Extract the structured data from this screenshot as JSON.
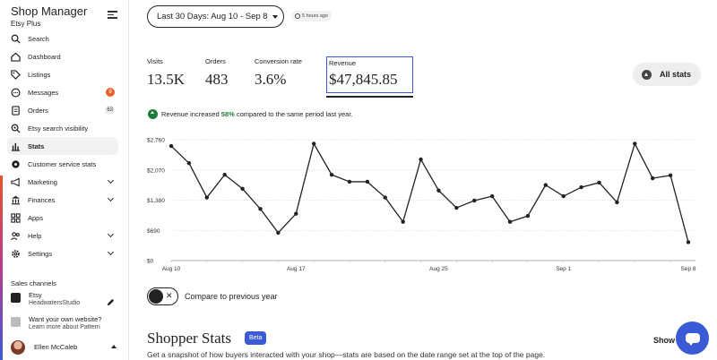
{
  "sidebar": {
    "title": "Shop Manager",
    "subtitle": "Etsy Plus",
    "items": [
      {
        "label": "Search",
        "icon": "search-icon"
      },
      {
        "label": "Dashboard",
        "icon": "home-icon"
      },
      {
        "label": "Listings",
        "icon": "tag-icon"
      },
      {
        "label": "Messages",
        "icon": "chat-icon",
        "badge": "9"
      },
      {
        "label": "Orders",
        "icon": "clipboard-icon",
        "badge": "63"
      },
      {
        "label": "Etsy search visibility",
        "icon": "magnify-icon"
      },
      {
        "label": "Stats",
        "icon": "bar-chart-icon",
        "active": true
      },
      {
        "label": "Customer service stats",
        "icon": "gear-icon"
      },
      {
        "label": "Marketing",
        "icon": "megaphone-icon",
        "chevron": true
      },
      {
        "label": "Finances",
        "icon": "bank-icon",
        "chevron": true
      },
      {
        "label": "Apps",
        "icon": "grid-icon"
      },
      {
        "label": "Help",
        "icon": "people-icon",
        "chevron": true
      },
      {
        "label": "Settings",
        "icon": "gear-icon",
        "chevron": true
      }
    ],
    "sales_channels_label": "Sales channels",
    "etsy_channel": {
      "name": "Etsy",
      "store": "HeadwatersStudio"
    },
    "website_prompt": {
      "question": "Want your own website?",
      "link": "Learn more about Pattern"
    },
    "user": {
      "name": "Ellen McCaleb"
    }
  },
  "header": {
    "date_range": "Last 30 Days: Aug 10 - Sep 8",
    "updated": "5 hours ago"
  },
  "metrics": [
    {
      "label": "Visits",
      "value": "13.5K"
    },
    {
      "label": "Orders",
      "value": "483"
    },
    {
      "label": "Conversion rate",
      "value": "3.6%"
    },
    {
      "label": "Revenue",
      "value": "$47,845.85"
    }
  ],
  "all_stats_label": "All stats",
  "insight": {
    "prefix": "Revenue increased ",
    "highlight": "58%",
    "suffix": " compared to the same period last year."
  },
  "chart_data": {
    "type": "line",
    "y_ticks": [
      "$2,760",
      "$2,070",
      "$1,380",
      "$690",
      "$0"
    ],
    "x_ticks": [
      "Aug 10",
      "Aug 17",
      "Aug 25",
      "Sep 1",
      "Sep 8"
    ],
    "ylim": [
      0,
      2760
    ],
    "series": [
      {
        "color": "#222222",
        "values": [
          2615,
          2225,
          1440,
          1960,
          1640,
          1180,
          635,
          1070,
          2670,
          1960,
          1800,
          1800,
          1440,
          885,
          2310,
          1600,
          1205,
          1370,
          1470,
          885,
          1020,
          1725,
          1470,
          1675,
          1780,
          1330,
          2670,
          1880,
          1945,
          420
        ]
      }
    ]
  },
  "compare_label": "Compare to previous year",
  "shopper": {
    "title": "Shopper Stats",
    "beta": "Beta",
    "show": "Show",
    "description": "Get a snapshot of how buyers interacted with your shop—stats are based on the date range set at the top of the page."
  }
}
